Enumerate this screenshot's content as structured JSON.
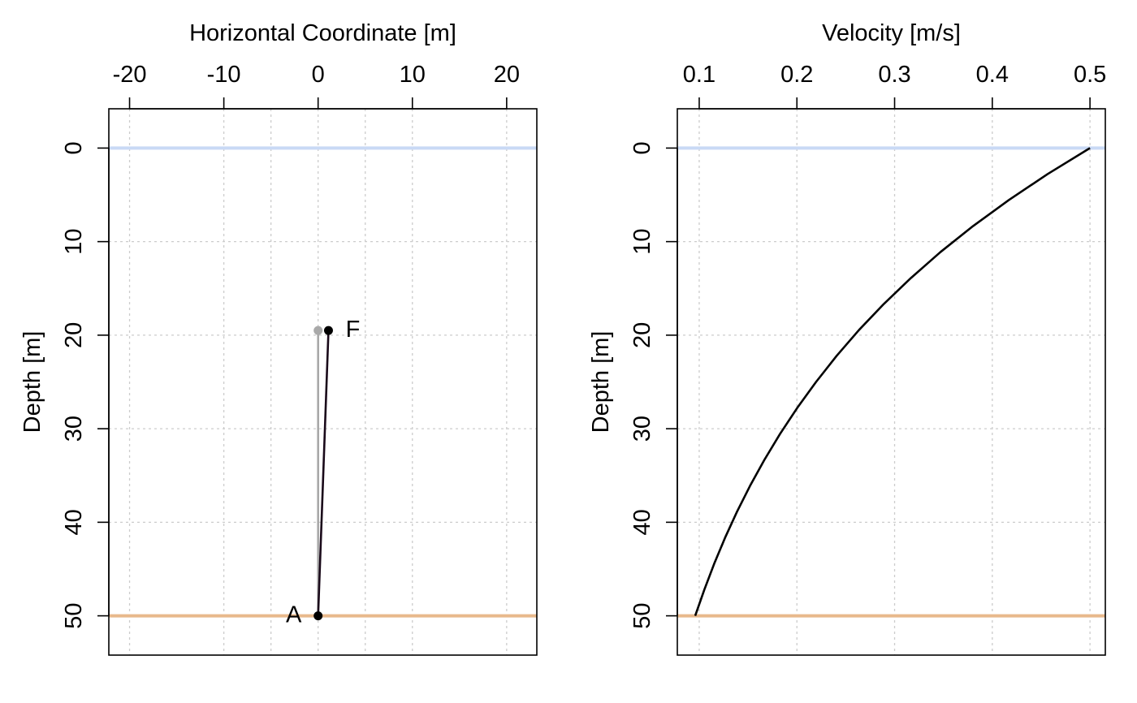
{
  "chart_data": [
    {
      "type": "line",
      "xlabel": "Horizontal Coordinate [m]",
      "ylabel": "Depth [m]",
      "x_axis_position": "top",
      "y_axis_reversed": true,
      "xlim": [
        -22.2,
        23.2
      ],
      "ylim": [
        -4.2,
        54.2
      ],
      "x_ticks": [
        -20,
        -10,
        0,
        10,
        20
      ],
      "x_tick_labels": [
        "-20",
        "-10",
        "0",
        "10",
        "20"
      ],
      "x_grid": [
        -20,
        -10,
        -5,
        0,
        5,
        10,
        20
      ],
      "y_ticks": [
        0,
        10,
        20,
        30,
        40,
        50
      ],
      "y_tick_labels": [
        "0",
        "10",
        "20",
        "30",
        "40",
        "50"
      ],
      "grid": true,
      "hlines": [
        {
          "y": 0,
          "color": "#c9d9f5"
        },
        {
          "y": 50,
          "color": "#e8b98c"
        }
      ],
      "series": [
        {
          "x": [
            0,
            0
          ],
          "y": [
            50,
            19.5
          ],
          "color": "#a9a9a9"
        },
        {
          "x": [
            0,
            1.1
          ],
          "y": [
            50,
            19.5
          ],
          "color": "#1a0a1a"
        }
      ],
      "points": [
        {
          "x": 0,
          "y": 19.5,
          "color": "#a9a9a9",
          "label": ""
        },
        {
          "x": 1.1,
          "y": 19.5,
          "color": "#000000",
          "label": "F"
        },
        {
          "x": 0,
          "y": 50,
          "color": "#000000",
          "label": "A"
        }
      ]
    },
    {
      "type": "line",
      "xlabel": "Velocity [m/s]",
      "ylabel": "Depth [m]",
      "x_axis_position": "top",
      "y_axis_reversed": true,
      "xlim": [
        0.0776,
        0.5157
      ],
      "ylim": [
        -4.2,
        54.2
      ],
      "x_ticks": [
        0.1,
        0.2,
        0.3,
        0.4,
        0.5
      ],
      "x_tick_labels": [
        "0.1",
        "0.2",
        "0.3",
        "0.4",
        "0.5"
      ],
      "x_grid": [
        0.1,
        0.2,
        0.3,
        0.4,
        0.5
      ],
      "y_ticks": [
        0,
        10,
        20,
        30,
        40,
        50
      ],
      "y_tick_labels": [
        "0",
        "10",
        "20",
        "30",
        "40",
        "50"
      ],
      "grid": true,
      "hlines": [
        {
          "y": 0,
          "color": "#c9d9f5"
        },
        {
          "y": 50,
          "color": "#e8b98c"
        }
      ],
      "series": [
        {
          "color": "#000000",
          "x": [
            0.5,
            0.4566,
            0.4169,
            0.3804,
            0.347,
            0.3167,
            0.2889,
            0.2636,
            0.2406,
            0.2196,
            0.2003,
            0.1827,
            0.1667,
            0.152,
            0.1386,
            0.1264,
            0.1153,
            0.1052,
            0.0959
          ],
          "y": [
            0,
            2.78,
            5.56,
            8.33,
            11.11,
            13.89,
            16.67,
            19.44,
            22.22,
            25,
            27.78,
            30.56,
            33.33,
            36.11,
            38.89,
            41.67,
            44.44,
            47.22,
            50
          ]
        }
      ]
    }
  ]
}
